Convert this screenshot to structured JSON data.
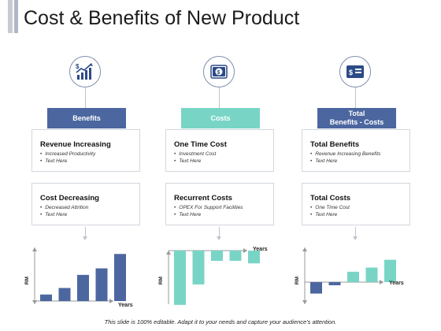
{
  "title": "Cost & Benefits of New Product",
  "columns": [
    {
      "header": "Benefits",
      "icon": "growth-chart-dollar-icon",
      "boxes": [
        {
          "heading": "Revenue Increasing",
          "bullets": [
            "Increased Productivity",
            "Text Here"
          ]
        },
        {
          "heading": "Cost Decreasing",
          "bullets": [
            "Decreased Attrition",
            "Text Here"
          ]
        }
      ]
    },
    {
      "header": "Costs",
      "icon": "money-dollar-icon",
      "boxes": [
        {
          "heading": "One Time Cost",
          "bullets": [
            "Investment Cost",
            "Text Here"
          ]
        },
        {
          "heading": "Recurrent Costs",
          "bullets": [
            "OPEX For Support Facilities",
            "Text Here"
          ]
        }
      ]
    },
    {
      "header": "Total\nBenefits - Costs",
      "icon": "wallet-dollar-icon",
      "boxes": [
        {
          "heading": "Total Benefits",
          "bullets": [
            "Revenue Increasing Benefits",
            "Text Here"
          ]
        },
        {
          "heading": "Total Costs",
          "bullets": [
            "One Time Cost",
            "Text Here"
          ]
        }
      ]
    }
  ],
  "colors": {
    "blue": "#4c67a0",
    "teal": "#78d5c6"
  },
  "chart_data": [
    {
      "type": "bar",
      "xlabel": "Years",
      "ylabel": "RM",
      "series": [
        {
          "values": [
            1,
            2,
            4,
            5,
            7.2
          ]
        }
      ]
    },
    {
      "type": "bar",
      "xlabel": "Years",
      "ylabel": "RM",
      "series": [
        {
          "values": [
            -8.5,
            -5.3,
            -1.6,
            -1.6,
            -2
          ]
        }
      ]
    },
    {
      "type": "bar",
      "xlabel": "Years",
      "ylabel": "RM",
      "series": [
        {
          "values": [
            -2.2,
            -0.6,
            2,
            2.8,
            4.3
          ]
        }
      ]
    }
  ],
  "footer": "This slide is 100% editable. Adapt it to your needs and capture your audience's attention."
}
